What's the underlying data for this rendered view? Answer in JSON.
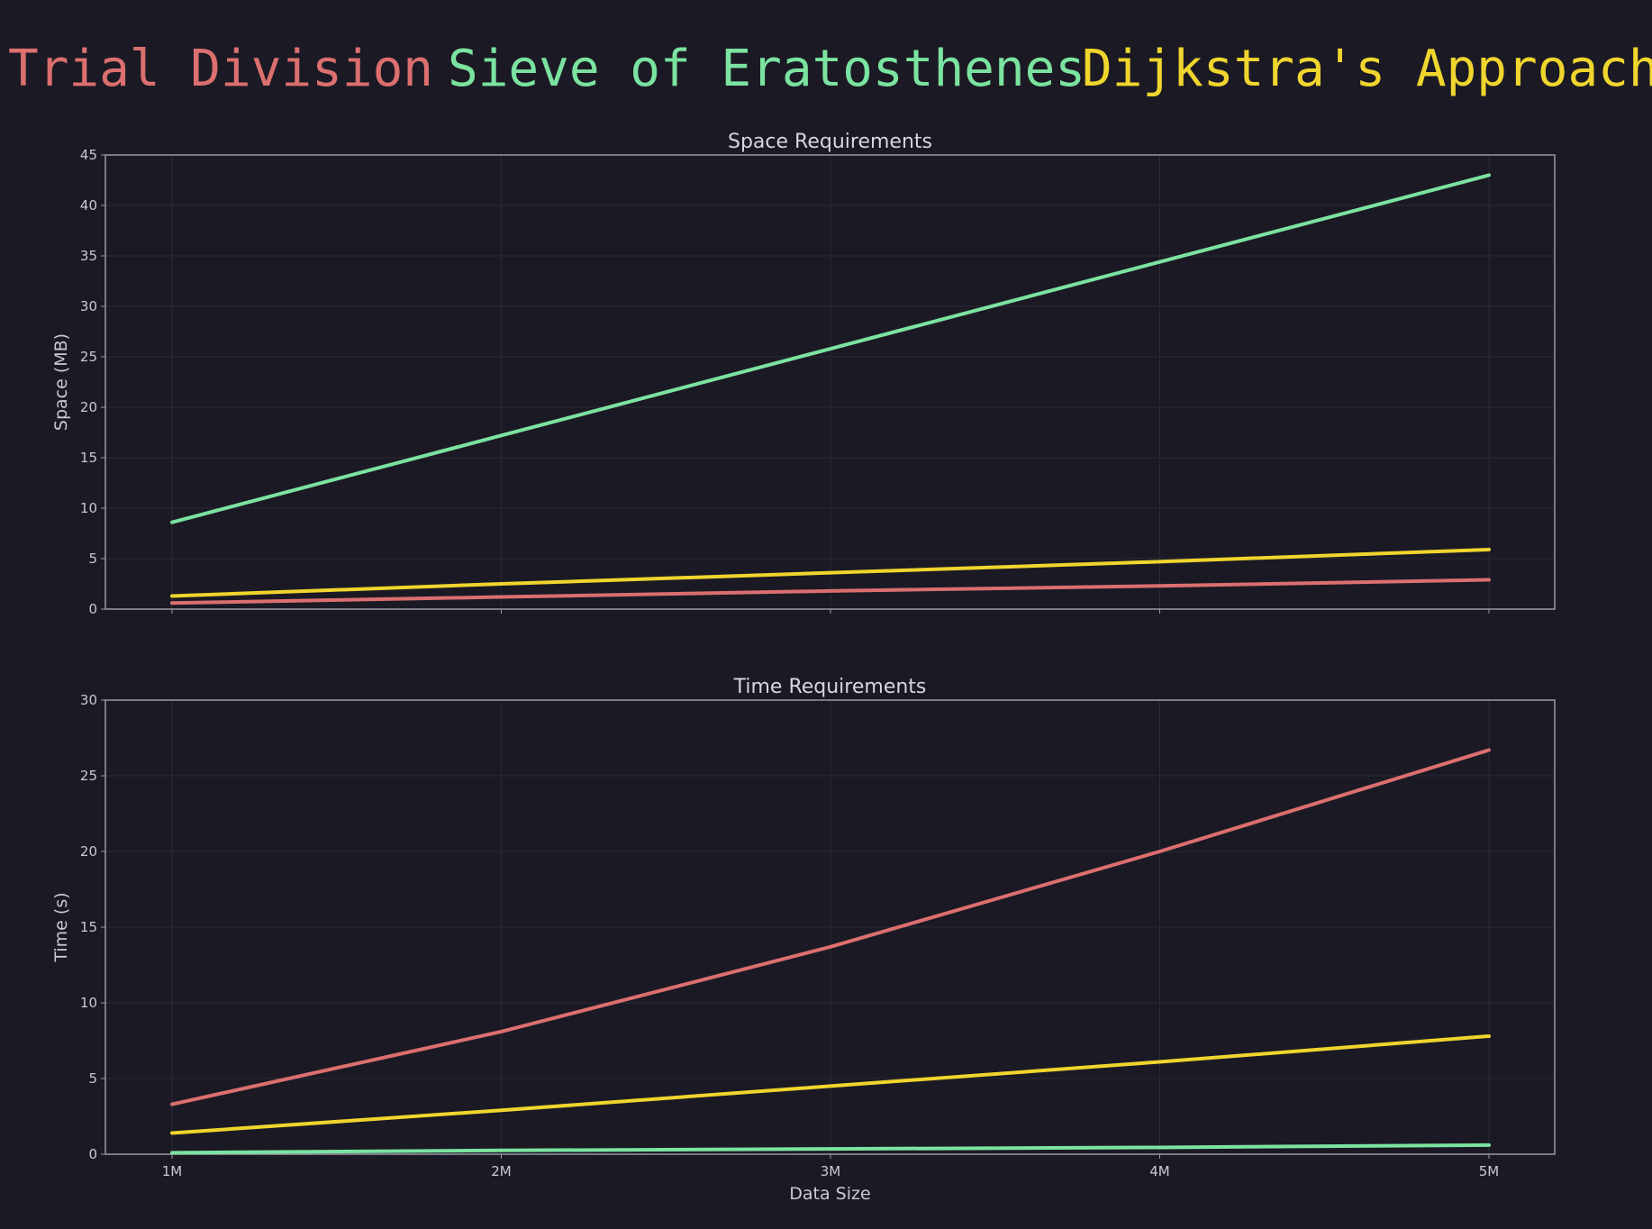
{
  "legend": [
    {
      "label": "Trial Division",
      "color": "#dc6f6f"
    },
    {
      "label": "Sieve of Eratosthenes",
      "color": "#7be3a0"
    },
    {
      "label": "Dijkstra's Approach",
      "color": "#f0d52e"
    }
  ],
  "chart_data": [
    {
      "type": "line",
      "title": "Space Requirements",
      "xlabel": "",
      "ylabel": "Space (MB)",
      "categories": [
        "1M",
        "2M",
        "3M",
        "4M",
        "5M"
      ],
      "ylim": [
        0,
        45
      ],
      "yticks": [
        "0",
        "5",
        "10",
        "15",
        "20",
        "25",
        "30",
        "35",
        "40",
        "45"
      ],
      "grid": true,
      "series": [
        {
          "name": "Trial Division",
          "values": [
            0.6,
            1.2,
            1.8,
            2.3,
            2.9
          ]
        },
        {
          "name": "Sieve of Eratosthenes",
          "values": [
            8.6,
            17.2,
            25.8,
            34.4,
            43.0
          ]
        },
        {
          "name": "Dijkstra's Approach",
          "values": [
            1.3,
            2.5,
            3.6,
            4.7,
            5.9
          ]
        }
      ]
    },
    {
      "type": "line",
      "title": "Time Requirements",
      "xlabel": "Data Size",
      "ylabel": "Time (s)",
      "categories": [
        "1M",
        "2M",
        "3M",
        "4M",
        "5M"
      ],
      "ylim": [
        0,
        30
      ],
      "yticks": [
        "0",
        "5",
        "10",
        "15",
        "20",
        "25",
        "30"
      ],
      "grid": true,
      "series": [
        {
          "name": "Trial Division",
          "values": [
            3.3,
            8.1,
            13.7,
            20.0,
            26.7
          ]
        },
        {
          "name": "Sieve of Eratosthenes",
          "values": [
            0.1,
            0.25,
            0.35,
            0.45,
            0.6
          ]
        },
        {
          "name": "Dijkstra's Approach",
          "values": [
            1.4,
            2.9,
            4.5,
            6.1,
            7.8
          ]
        }
      ]
    }
  ]
}
